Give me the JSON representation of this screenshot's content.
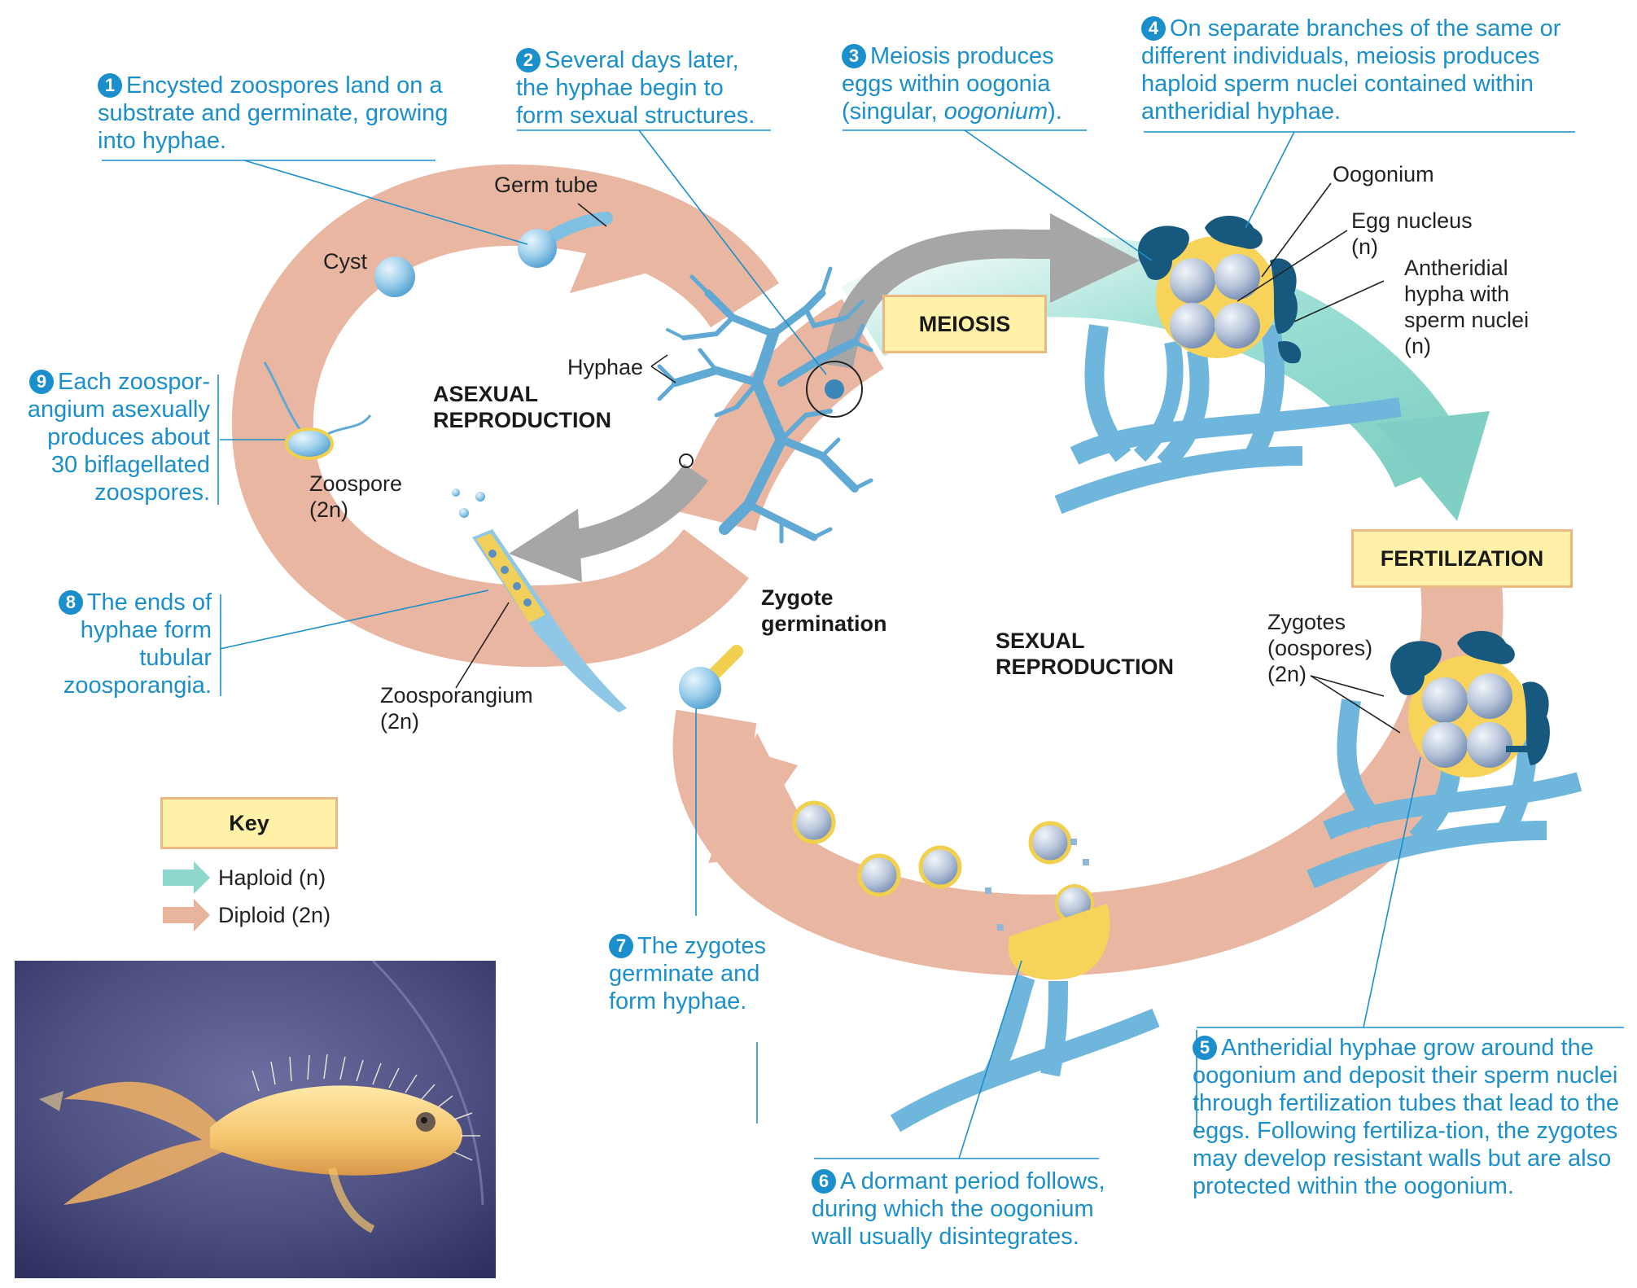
{
  "steps": {
    "s1": {
      "num": "1",
      "text": "Encysted zoospores land on a substrate and germinate, growing into hyphae."
    },
    "s2": {
      "num": "2",
      "text": "Several days later, the hyphae begin to form sexual structures."
    },
    "s3": {
      "num": "3",
      "text_a": "Meiosis produces eggs within oogonia (singular, ",
      "text_em": "oogonium",
      "text_b": ")."
    },
    "s4": {
      "num": "4",
      "text": "On separate branches of the same or different individuals, meiosis produces haploid sperm nuclei contained within antheridial hyphae."
    },
    "s5": {
      "num": "5",
      "text": "Antheridial hyphae grow around the oogonium and deposit their sperm nuclei through fertilization tubes that lead to the eggs. Following fertiliza-tion, the zygotes may develop resistant walls but are also protected within the oogonium."
    },
    "s6": {
      "num": "6",
      "text": "A dormant period follows, during which the oogonium wall usually disintegrates."
    },
    "s7": {
      "num": "7",
      "text": "The zygotes germinate and form hyphae."
    },
    "s8": {
      "num": "8",
      "text": "The ends of hyphae form tubular zoosporangia."
    },
    "s9": {
      "num": "9",
      "text": "Each zoospor-angium asexually produces about 30 biflagellated zoospores."
    }
  },
  "labels": {
    "germ_tube": "Germ tube",
    "cyst": "Cyst",
    "hyphae": "Hyphae",
    "zoospore": "Zoospore",
    "zoospore_ploidy": "(2n)",
    "zoosporangium": "Zoosporangium",
    "zoosporangium_ploidy": "(2n)",
    "oogonium": "Oogonium",
    "egg_nucleus": "Egg nucleus",
    "egg_nucleus_ploidy": "(n)",
    "antheridial": "Antheridial hypha with sperm nuclei",
    "antheridial_ploidy": "(n)",
    "zygotes": "Zygotes (oospores)",
    "zygotes_ploidy": "(2n)",
    "asexual": "ASEXUAL REPRODUCTION",
    "sexual": "SEXUAL REPRODUCTION",
    "zygote_germination": "Zygote germination",
    "meiosis": "MEIOSIS",
    "fertilization": "FERTILIZATION"
  },
  "key": {
    "title": "Key",
    "haploid": "Haploid (n)",
    "diploid": "Diploid (2n)",
    "haploid_color": "#8fd6cd",
    "diploid_color": "#e8b49c"
  },
  "colors": {
    "step_text": "#1a8fcb",
    "hypha": "#6fb6dc",
    "antheridium": "#17597e",
    "egg_yellow": "#f7d35a",
    "box_fill": "#fff2a8"
  }
}
